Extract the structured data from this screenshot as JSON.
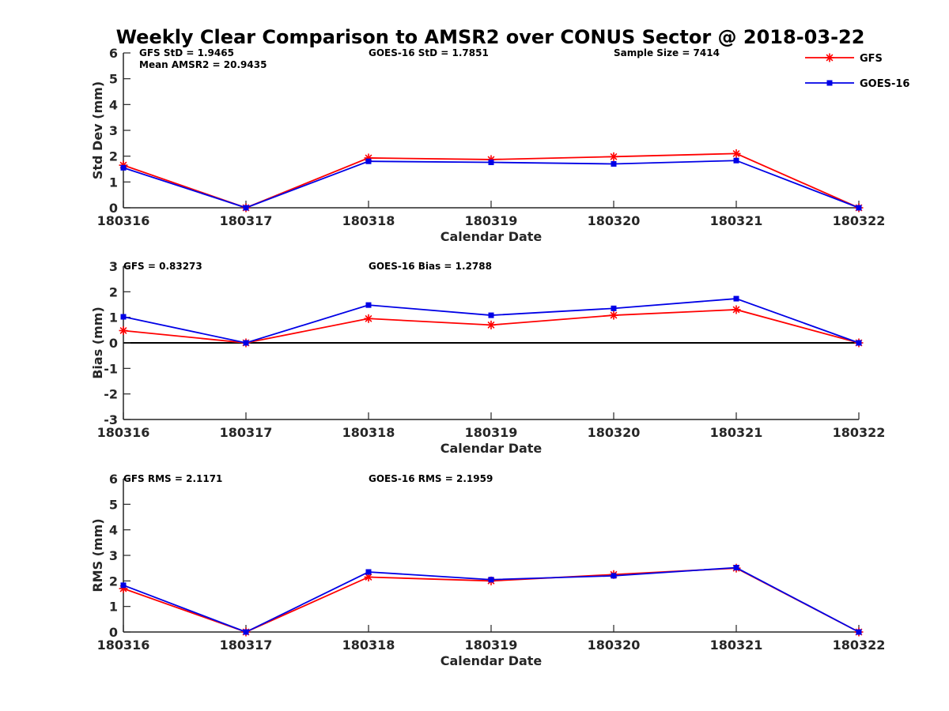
{
  "title": "Weekly Clear Comparison to AMSR2 over CONUS Sector @ 2018-03-22",
  "colors": {
    "gfs": "#ff0000",
    "goes": "#0000e6",
    "axis": "#262626",
    "zero_line": "#000000"
  },
  "legend": {
    "placement": "top-right",
    "items": [
      "GFS",
      "GOES-16"
    ]
  },
  "chart_data": [
    {
      "type": "line",
      "categories": [
        "180316",
        "180317",
        "180318",
        "180319",
        "180320",
        "180321",
        "180322"
      ],
      "xlabel": "Calendar Date",
      "ylabel": "Std Dev (mm)",
      "ylim": [
        0,
        6
      ],
      "yticks": [
        "0",
        "1",
        "2",
        "3",
        "4",
        "5",
        "6"
      ],
      "grid": false,
      "annotations": [
        "GFS StD = 1.9465",
        "Mean AMSR2 = 20.9435",
        "GOES-16 StD = 1.7851",
        "Sample Size = 7414"
      ],
      "series": [
        {
          "name": "GFS",
          "values": [
            1.65,
            0.0,
            1.93,
            1.87,
            1.98,
            2.1,
            0.0
          ]
        },
        {
          "name": "GOES-16",
          "values": [
            1.55,
            0.0,
            1.8,
            1.76,
            1.7,
            1.83,
            0.0
          ]
        }
      ]
    },
    {
      "type": "line",
      "categories": [
        "180316",
        "180317",
        "180318",
        "180319",
        "180320",
        "180321",
        "180322"
      ],
      "xlabel": "Calendar Date",
      "ylabel": "Bias (mm)",
      "ylim": [
        -3,
        3
      ],
      "yticks": [
        "-3",
        "-2",
        "-1",
        "0",
        "1",
        "2",
        "3"
      ],
      "grid": false,
      "annotations": [
        "GFS = 0.83273",
        "GOES-16 Bias  = 1.2788"
      ],
      "series": [
        {
          "name": "GFS",
          "values": [
            0.48,
            0.0,
            0.95,
            0.7,
            1.08,
            1.3,
            0.0
          ]
        },
        {
          "name": "GOES-16",
          "values": [
            1.02,
            0.0,
            1.48,
            1.08,
            1.35,
            1.73,
            0.0
          ]
        }
      ]
    },
    {
      "type": "line",
      "categories": [
        "180316",
        "180317",
        "180318",
        "180319",
        "180320",
        "180321",
        "180322"
      ],
      "xlabel": "Calendar Date",
      "ylabel": "RMS (mm)",
      "ylim": [
        0,
        6
      ],
      "yticks": [
        "0",
        "1",
        "2",
        "3",
        "4",
        "5",
        "6"
      ],
      "grid": false,
      "annotations": [
        "GFS RMS = 2.1171",
        "GOES-16 RMS = 2.1959"
      ],
      "series": [
        {
          "name": "GFS",
          "values": [
            1.7,
            0.0,
            2.15,
            2.0,
            2.25,
            2.5,
            0.0
          ]
        },
        {
          "name": "GOES-16",
          "values": [
            1.83,
            0.0,
            2.35,
            2.05,
            2.2,
            2.52,
            0.0
          ]
        }
      ]
    }
  ]
}
